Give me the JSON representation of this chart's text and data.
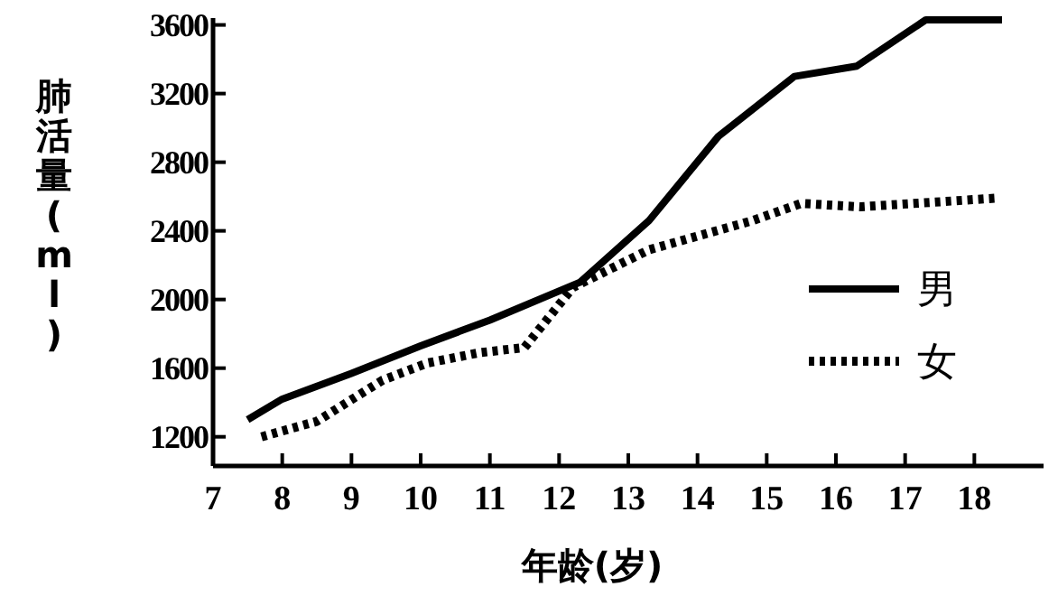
{
  "chart_data": {
    "type": "line",
    "xlabel": "年龄(岁)",
    "ylabel": "肺活量(ml)",
    "xlim": [
      7,
      19
    ],
    "ylim": [
      1030,
      3640
    ],
    "xticks": [
      7,
      8,
      9,
      10,
      11,
      12,
      13,
      14,
      15,
      16,
      17,
      18
    ],
    "yticks": [
      1200,
      1600,
      2000,
      2400,
      2800,
      3200,
      3600
    ],
    "grid": false,
    "legend": "right",
    "marker": "none",
    "series": [
      {
        "name": "男",
        "color": "#000000",
        "line_style": "solid",
        "x": [
          7.5,
          8,
          9,
          10,
          11,
          12.3,
          13.3,
          14.3,
          15.4,
          16.3,
          17.3,
          18.4
        ],
        "values": [
          1300,
          1420,
          1570,
          1730,
          1880,
          2100,
          2460,
          2950,
          3300,
          3360,
          3630,
          3630
        ]
      },
      {
        "name": "女",
        "color": "#000000",
        "line_style": "dotted",
        "x": [
          7.7,
          8.5,
          9.45,
          10.1,
          10.85,
          11.5,
          12.2,
          13.3,
          14.8,
          15.5,
          16.35,
          18.3
        ],
        "values": [
          1200,
          1290,
          1530,
          1630,
          1690,
          1720,
          2070,
          2290,
          2460,
          2560,
          2540,
          2590
        ]
      }
    ]
  }
}
